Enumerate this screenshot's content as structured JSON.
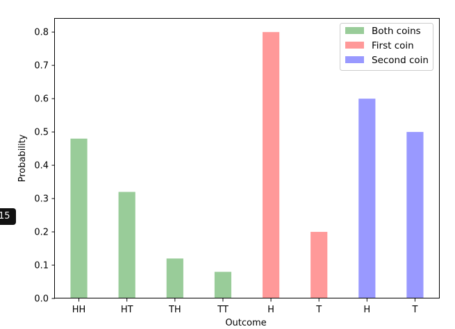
{
  "chart_data": {
    "type": "bar",
    "categories": [
      "HH",
      "HT",
      "TH",
      "TT",
      "H",
      "T",
      "H",
      "T"
    ],
    "series": [
      {
        "name": "Both coins",
        "color": "#99cc99",
        "positions": [
          0,
          1,
          2,
          3
        ],
        "values": [
          0.48,
          0.32,
          0.12,
          0.08
        ]
      },
      {
        "name": "First coin",
        "color": "#ff9999",
        "positions": [
          4,
          5
        ],
        "values": [
          0.8,
          0.2
        ]
      },
      {
        "name": "Second coin",
        "color": "#9999ff",
        "positions": [
          6,
          7
        ],
        "values": [
          0.6,
          0.5
        ]
      }
    ],
    "title": "",
    "xlabel": "Outcome",
    "ylabel": "Probability",
    "ylim": [
      0,
      0.84
    ],
    "yticks": [
      0.0,
      0.1,
      0.2,
      0.3,
      0.4,
      0.5,
      0.6,
      0.7,
      0.8
    ],
    "grid": false,
    "legend_position": "top-right"
  },
  "overlay": {
    "badge_text": "15"
  }
}
